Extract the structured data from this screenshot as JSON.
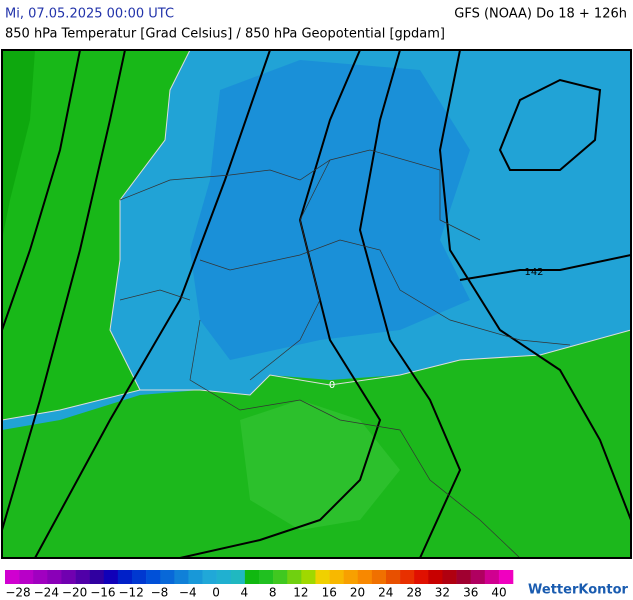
{
  "header": {
    "datetime": "Mi, 07.05.2025 00:00 UTC",
    "model": "GFS (NOAA) Do 18 + 126h",
    "subtitle": "850 hPa Temperatur [Grad Celsius] / 850 hPa Geopotential [gpdam]"
  },
  "map": {
    "contour_labels": [
      "142",
      "0"
    ]
  },
  "legend": {
    "ticks": [
      {
        "value": -28,
        "label": "−28"
      },
      {
        "value": -24,
        "label": "−24"
      },
      {
        "value": -20,
        "label": "−20"
      },
      {
        "value": -16,
        "label": "−16"
      },
      {
        "value": -12,
        "label": "−12"
      },
      {
        "value": -8,
        "label": "−8"
      },
      {
        "value": -4,
        "label": "−4"
      },
      0,
      4,
      8,
      12,
      16,
      20,
      24,
      28,
      32,
      36,
      40
    ]
  },
  "logo": "WetterKontor"
}
